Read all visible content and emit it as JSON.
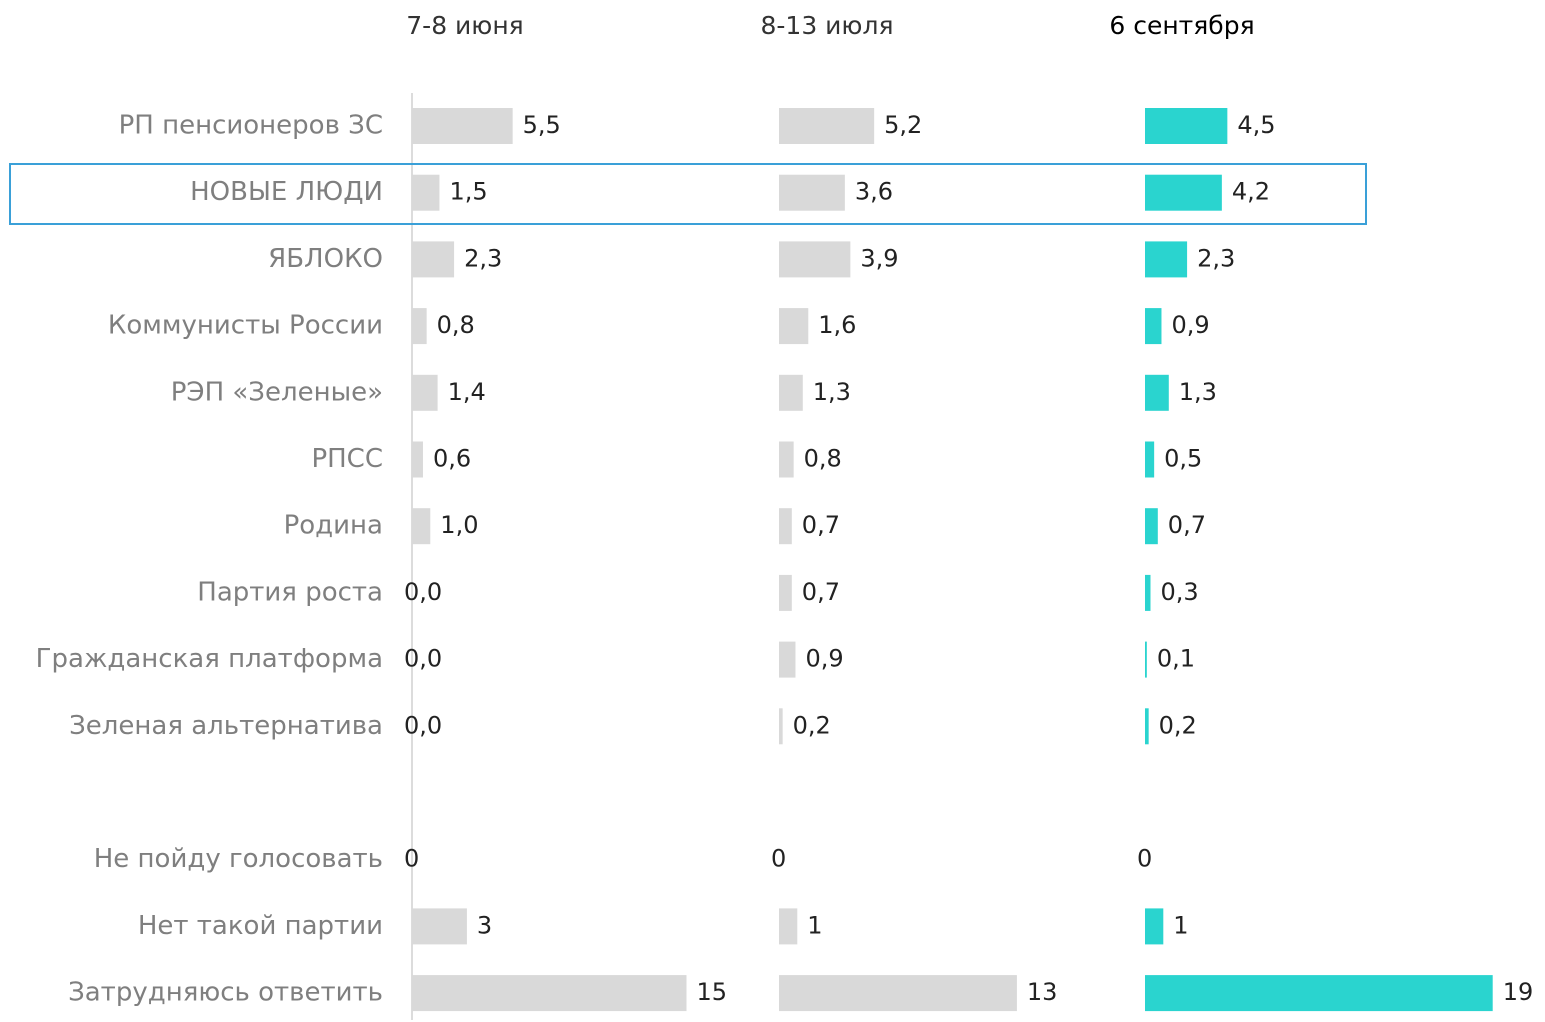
{
  "chart_data": {
    "type": "bar",
    "orientation": "horizontal",
    "categories": [
      "РП пенсионеров ЗС",
      "НОВЫЕ ЛЮДИ",
      "ЯБЛОКО",
      "Коммунисты России",
      "РЭП «Зеленые»",
      "РПСС",
      "Родина",
      "Партия роста",
      "Гражданская платформа",
      "Зеленая альтернатива",
      null,
      "Не пойду голосовать",
      "Нет такой партии",
      "Затрудняюсь ответить"
    ],
    "series": [
      {
        "name": "7-8 июня",
        "color": "#d9d9d9",
        "values": [
          5.5,
          1.5,
          2.3,
          0.8,
          1.4,
          0.6,
          1.0,
          0.0,
          0.0,
          0.0,
          null,
          0,
          3,
          15
        ],
        "value_labels": [
          "5,5",
          "1,5",
          "2,3",
          "0,8",
          "1,4",
          "0,6",
          "1,0",
          "0,0",
          "0,0",
          "0,0",
          null,
          "0",
          "3",
          "15"
        ]
      },
      {
        "name": "8-13 июля",
        "color": "#d9d9d9",
        "values": [
          5.2,
          3.6,
          3.9,
          1.6,
          1.3,
          0.8,
          0.7,
          0.7,
          0.9,
          0.2,
          null,
          0,
          1,
          13
        ],
        "value_labels": [
          "5,2",
          "3,6",
          "3,9",
          "1,6",
          "1,3",
          "0,8",
          "0,7",
          "0,7",
          "0,9",
          "0,2",
          null,
          "0",
          "1",
          "13"
        ]
      },
      {
        "name": "6 сентября",
        "color": "#2ad4cf",
        "values": [
          4.5,
          4.2,
          2.3,
          0.9,
          1.3,
          0.5,
          0.7,
          0.3,
          0.1,
          0.2,
          null,
          0,
          1,
          19
        ],
        "value_labels": [
          "4,5",
          "4,2",
          "2,3",
          "0,9",
          "1,3",
          "0,5",
          "0,7",
          "0,3",
          "0,1",
          "0,2",
          null,
          "0",
          "1",
          "19"
        ]
      }
    ]
  }
}
